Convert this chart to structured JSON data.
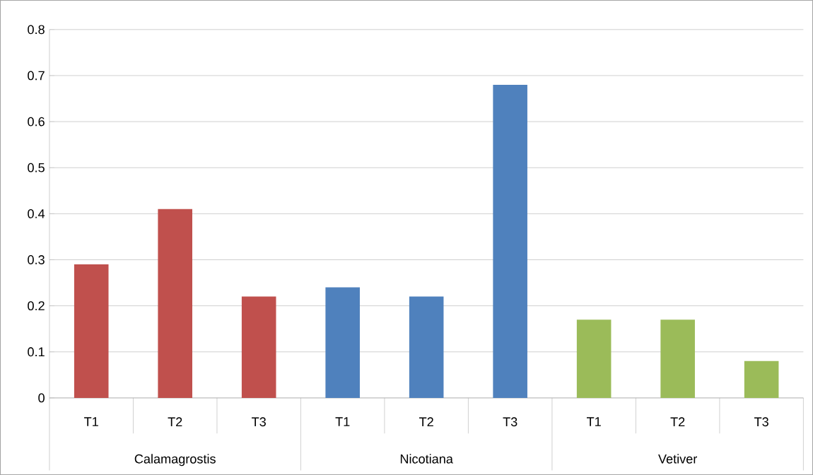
{
  "chart_data": {
    "type": "bar",
    "categories": [
      "T1",
      "T2",
      "T3",
      "T1",
      "T2",
      "T3",
      "T1",
      "T2",
      "T3"
    ],
    "series": [
      {
        "color": "#c0504d",
        "values": [
          0.29,
          0.41,
          0.22,
          null,
          null,
          null,
          null,
          null,
          null
        ]
      },
      {
        "color": "#4f81bd",
        "values": [
          null,
          null,
          null,
          0.24,
          0.22,
          0.68,
          null,
          null,
          null
        ]
      },
      {
        "color": "#9bbb59",
        "values": [
          null,
          null,
          null,
          null,
          null,
          null,
          0.17,
          0.17,
          0.08
        ]
      }
    ],
    "annotations": [
      "Calamagrostis",
      "Nicotiana",
      "Vetiver"
    ],
    "ylim": [
      0,
      0.8
    ],
    "yticks": [
      0,
      0.1,
      0.2,
      0.3,
      0.4,
      0.5,
      0.6,
      0.7,
      0.8
    ],
    "grid": "y"
  }
}
